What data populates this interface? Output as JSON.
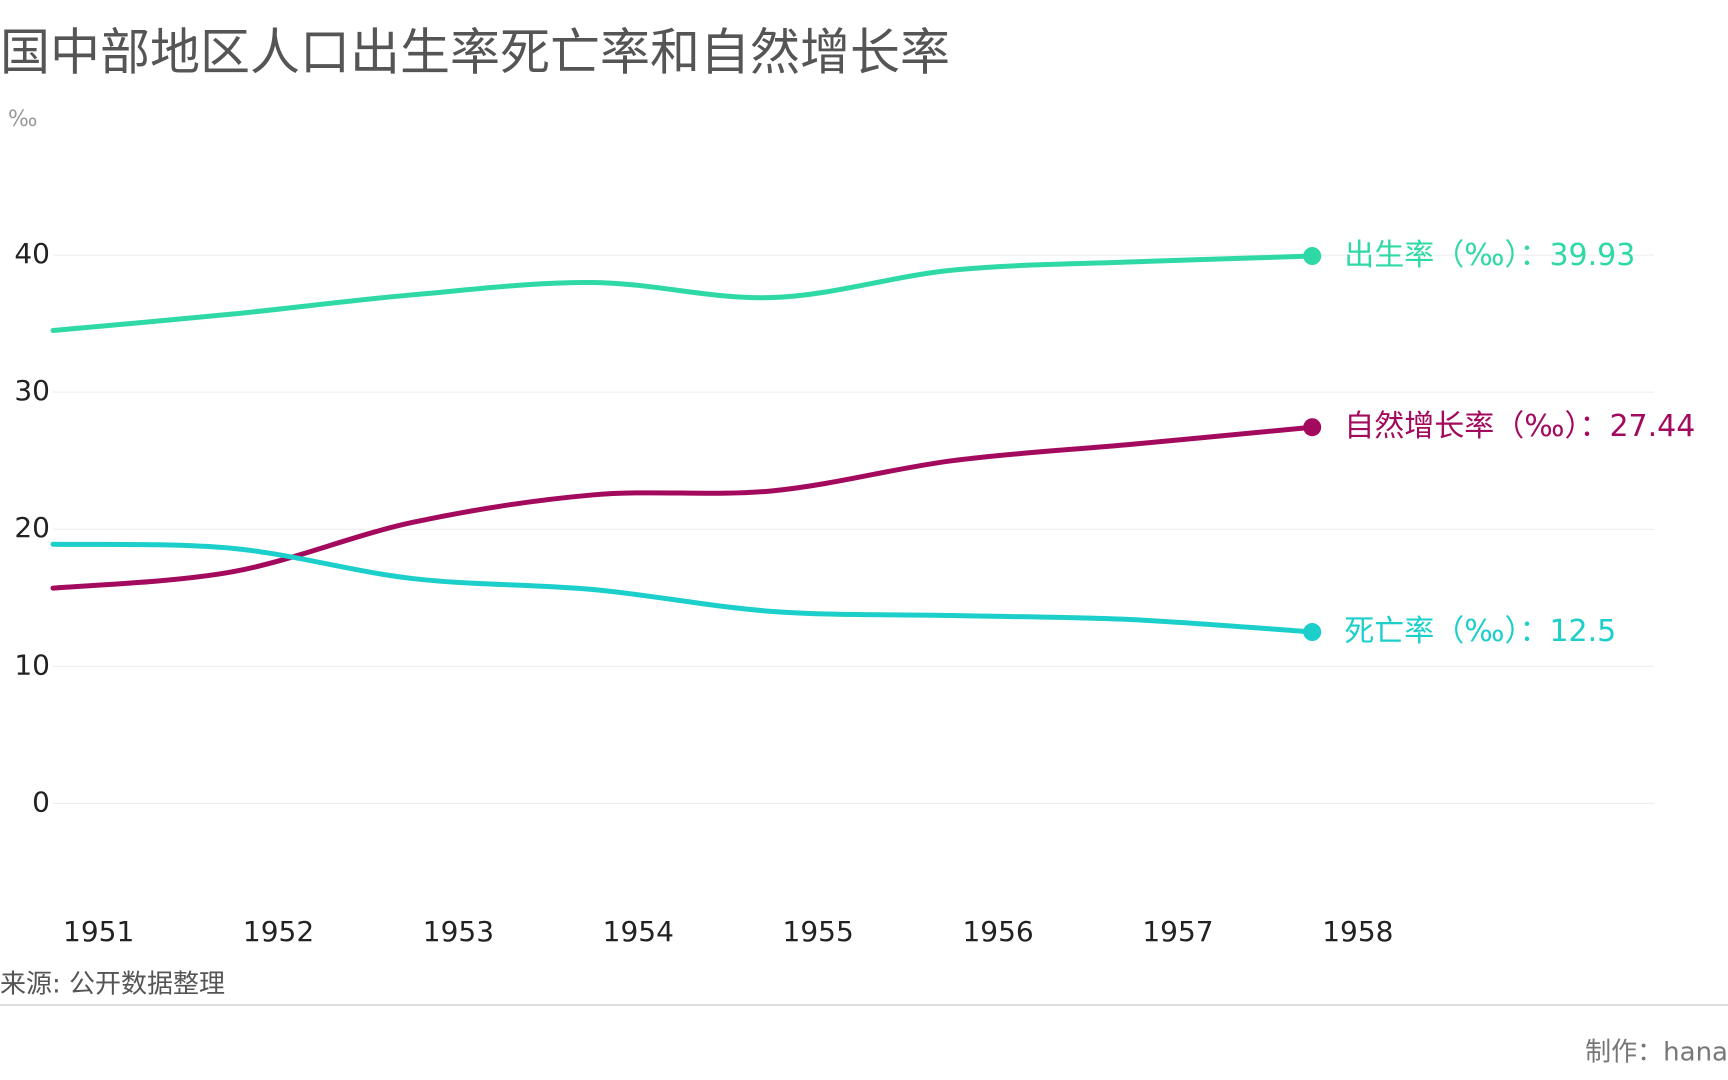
{
  "chart_data": {
    "type": "line",
    "title": "国中部地区人口出生率死亡率和自然增长率",
    "unit": "‰",
    "source": "来源: 公开数据整理",
    "credit": "制作：hana",
    "label_separator": "：",
    "x": [
      1951,
      1952,
      1953,
      1954,
      1955,
      1956,
      1957,
      1958
    ],
    "xlim": [
      1951,
      1959.9
    ],
    "xticks": [
      1951,
      1952,
      1953,
      1954,
      1955,
      1956,
      1957,
      1958
    ],
    "ylim": [
      -8,
      50
    ],
    "yticks": [
      0,
      10,
      20,
      30,
      40
    ],
    "grid": true,
    "series": [
      {
        "name": "出生率（‰）",
        "color": "#2fd9a6",
        "values": [
          34.5,
          35.7,
          37.1,
          38.0,
          36.9,
          38.9,
          39.5,
          39.93
        ]
      },
      {
        "name": "自然增长率（‰）",
        "color": "#a30a5e",
        "values": [
          15.7,
          16.9,
          20.5,
          22.5,
          22.8,
          25.0,
          26.2,
          27.44
        ]
      },
      {
        "name": "死亡率（‰）",
        "color": "#1ccfca",
        "values": [
          18.9,
          18.6,
          16.4,
          15.6,
          14.0,
          13.7,
          13.4,
          12.5
        ]
      }
    ]
  }
}
